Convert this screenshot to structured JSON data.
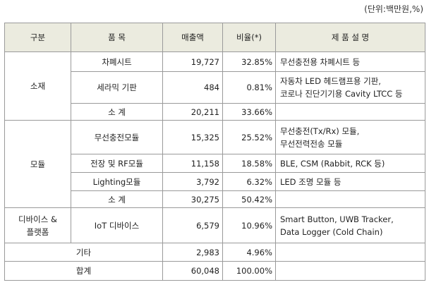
{
  "unit_note": "(단위:백만원,%)",
  "headers": {
    "category": "구분",
    "item": "품 목",
    "sales": "매출액",
    "ratio": "비율(*)",
    "desc": "제 품 설 명"
  },
  "groups": {
    "material": {
      "label": "소재",
      "rows": [
        {
          "item": "차폐시트",
          "sales": "19,727",
          "ratio": "32.85%",
          "desc": [
            "무선충전용 차폐시트 등"
          ]
        },
        {
          "item": "세라믹 기판",
          "sales": "484",
          "ratio": "0.81%",
          "desc": [
            "자동차 LED 헤드램프용 기판,",
            "코로나 진단기기용 Cavity LTCC 등"
          ]
        }
      ],
      "subtotal": {
        "item": "소 계",
        "sales": "20,211",
        "ratio": "33.66%"
      }
    },
    "module": {
      "label": "모듈",
      "rows": [
        {
          "item": "무선충전모듈",
          "sales": "15,325",
          "ratio": "25.52%",
          "desc": [
            "무선충전(Tx/Rx) 모듈,",
            "무선전력전송 모듈"
          ]
        },
        {
          "item": "전장 및 RF모듈",
          "sales": "11,158",
          "ratio": "18.58%",
          "desc": [
            "BLE, CSM (Rabbit, RCK 등)"
          ]
        },
        {
          "item": "Lighting모듈",
          "sales": "3,792",
          "ratio": "6.32%",
          "desc": [
            "LED 조명 모듈 등"
          ]
        }
      ],
      "subtotal": {
        "item": "소 계",
        "sales": "30,275",
        "ratio": "50.42%"
      }
    },
    "device": {
      "label": [
        "디바이스 &",
        "플랫폼"
      ],
      "rows": [
        {
          "item": "IoT 디바이스",
          "sales": "6,579",
          "ratio": "10.96%",
          "desc": [
            "Smart Button, UWB Tracker,",
            "Data Logger (Cold Chain)"
          ]
        }
      ]
    }
  },
  "other": {
    "label": "기타",
    "sales": "2,983",
    "ratio": "4.96%"
  },
  "total": {
    "label": "합계",
    "sales": "60,048",
    "ratio": "100.00%"
  }
}
